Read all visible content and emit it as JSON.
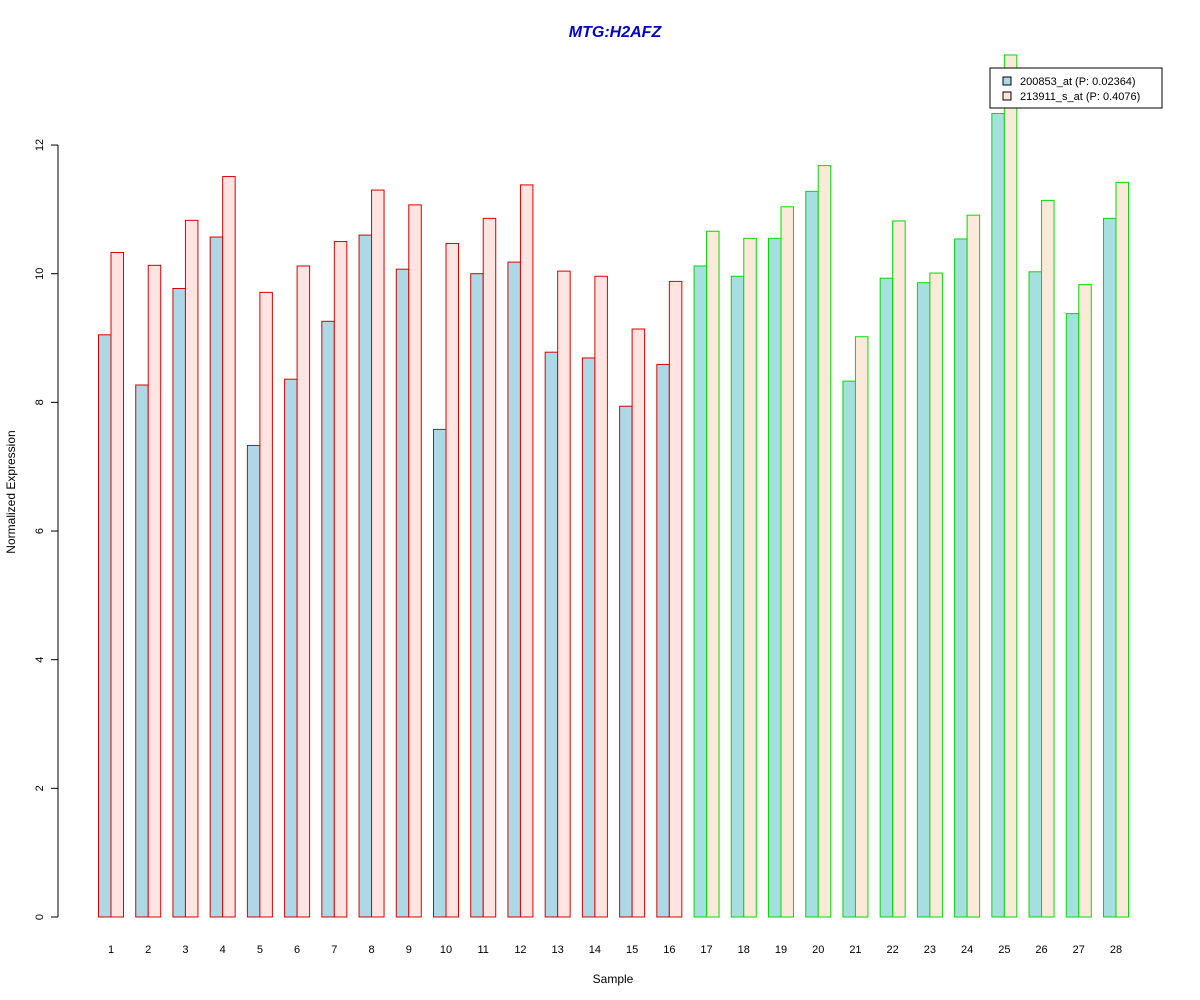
{
  "chart_data": {
    "type": "bar",
    "title": "MTG:H2AFZ",
    "xlabel": "Sample",
    "ylabel": "Normalized Expression",
    "ylim": [
      0,
      13.5
    ],
    "yticks": [
      "0",
      "2",
      "4",
      "6",
      "8",
      "10",
      "12"
    ],
    "categories": [
      "1",
      "2",
      "3",
      "4",
      "5",
      "6",
      "7",
      "8",
      "9",
      "10",
      "11",
      "12",
      "13",
      "14",
      "15",
      "16",
      "17",
      "18",
      "19",
      "20",
      "21",
      "22",
      "23",
      "24",
      "25",
      "26",
      "27",
      "28"
    ],
    "series": [
      {
        "name": "200853_at (P: 0.02364)",
        "values": [
          9.05,
          8.27,
          9.77,
          10.57,
          7.33,
          8.36,
          9.26,
          10.6,
          10.07,
          7.58,
          10.0,
          10.18,
          8.78,
          8.69,
          7.94,
          8.59,
          10.12,
          9.96,
          10.55,
          11.28,
          8.33,
          9.93,
          9.86,
          10.54,
          12.49,
          10.03,
          9.38,
          10.86
        ]
      },
      {
        "name": "213911_s_at (P: 0.4076)",
        "values": [
          10.33,
          10.13,
          10.83,
          11.51,
          9.71,
          10.12,
          10.5,
          11.3,
          11.07,
          10.47,
          10.86,
          11.38,
          10.04,
          9.96,
          9.14,
          9.88,
          10.66,
          10.55,
          11.04,
          11.68,
          9.02,
          10.82,
          10.01,
          10.91,
          13.4,
          11.14,
          9.83,
          11.42
        ]
      }
    ],
    "group_colors": {
      "first_16": {
        "s1_fill": "#add8e6",
        "s2_fill": "#ffe4e1",
        "border": "#dd0000"
      },
      "last_12": {
        "s1_fill": "#a5dfdf",
        "s2_fill": "#fbead9",
        "border": "#00dd00"
      }
    },
    "legend": {
      "position": "top-right",
      "entries": [
        {
          "label": "200853_at (P: 0.02364)",
          "fill": "#add8e6"
        },
        {
          "label": "213911_s_at (P: 0.4076)",
          "fill": "#ffe4e1"
        }
      ]
    }
  }
}
